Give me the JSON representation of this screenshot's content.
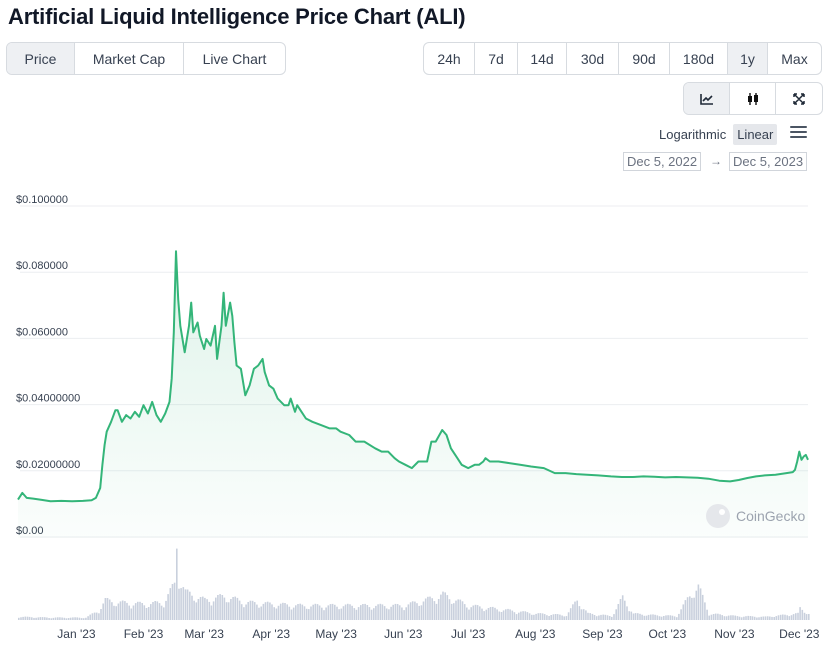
{
  "title": "Artificial Liquid Intelligence Price Chart (ALI)",
  "tabs": [
    "Price",
    "Market Cap",
    "Live Chart"
  ],
  "active_tab": "Price",
  "ranges": [
    "24h",
    "7d",
    "14d",
    "30d",
    "90d",
    "180d",
    "1y",
    "Max"
  ],
  "active_range": "1y",
  "chart_types": [
    "line-chart-icon",
    "candlestick-icon",
    "expand-icon"
  ],
  "active_chart_type": "line-chart-icon",
  "scale": {
    "options": [
      "Logarithmic",
      "Linear"
    ],
    "active": "Linear"
  },
  "menu_icon": "hamburger-menu-icon",
  "date_range": {
    "from": "Dec 5, 2022",
    "arrow": "→",
    "to": "Dec 5, 2023"
  },
  "watermark": "CoinGecko",
  "colors": {
    "line": "#34b579",
    "fill": "#e8f6ee",
    "volume": "#c9d0dd",
    "grid": "#eceef1"
  },
  "chart_data": {
    "type": "area",
    "x_start": "2022-12-05",
    "x_end": "2023-12-05",
    "ylim": [
      0,
      0.1
    ],
    "yticks": [
      "$0.00",
      "$0.02000000",
      "$0.04000000",
      "$0.060000",
      "$0.080000",
      "$0.100000"
    ],
    "ytick_values": [
      0,
      0.02,
      0.04,
      0.06,
      0.08,
      0.1
    ],
    "xticks": [
      "Jan '23",
      "Feb '23",
      "Mar '23",
      "Apr '23",
      "May '23",
      "Jun '23",
      "Jul '23",
      "Aug '23",
      "Sep '23",
      "Oct '23",
      "Nov '23",
      "Dec '23"
    ],
    "xtick_dates": [
      "2023-01-01",
      "2023-02-01",
      "2023-03-01",
      "2023-04-01",
      "2023-05-01",
      "2023-06-01",
      "2023-07-01",
      "2023-08-01",
      "2023-09-01",
      "2023-10-01",
      "2023-11-01",
      "2023-12-01"
    ],
    "grid": true,
    "series": [
      {
        "points": [
          [
            "2022-12-05",
            0.0095
          ],
          [
            "2022-12-07",
            0.0115
          ],
          [
            "2022-12-09",
            0.01
          ],
          [
            "2022-12-12",
            0.0098
          ],
          [
            "2022-12-16",
            0.0094
          ],
          [
            "2022-12-20",
            0.009
          ],
          [
            "2022-12-25",
            0.0091
          ],
          [
            "2022-12-30",
            0.009
          ],
          [
            "2023-01-04",
            0.0091
          ],
          [
            "2023-01-08",
            0.0093
          ],
          [
            "2023-01-10",
            0.01
          ],
          [
            "2023-01-12",
            0.013
          ],
          [
            "2023-01-13",
            0.02
          ],
          [
            "2023-01-14",
            0.026
          ],
          [
            "2023-01-15",
            0.03
          ],
          [
            "2023-01-17",
            0.033
          ],
          [
            "2023-01-19",
            0.0365
          ],
          [
            "2023-01-20",
            0.0365
          ],
          [
            "2023-01-22",
            0.033
          ],
          [
            "2023-01-24",
            0.035
          ],
          [
            "2023-01-26",
            0.034
          ],
          [
            "2023-01-28",
            0.036
          ],
          [
            "2023-01-30",
            0.0345
          ],
          [
            "2023-02-01",
            0.038
          ],
          [
            "2023-02-03",
            0.0355
          ],
          [
            "2023-02-05",
            0.039
          ],
          [
            "2023-02-07",
            0.035
          ],
          [
            "2023-02-09",
            0.033
          ],
          [
            "2023-02-11",
            0.0355
          ],
          [
            "2023-02-13",
            0.039
          ],
          [
            "2023-02-14",
            0.046
          ],
          [
            "2023-02-15",
            0.06
          ],
          [
            "2023-02-16",
            0.0845
          ],
          [
            "2023-02-17",
            0.07
          ],
          [
            "2023-02-18",
            0.062
          ],
          [
            "2023-02-20",
            0.054
          ],
          [
            "2023-02-22",
            0.062
          ],
          [
            "2023-02-23",
            0.069
          ],
          [
            "2023-02-24",
            0.06
          ],
          [
            "2023-02-26",
            0.063
          ],
          [
            "2023-02-27",
            0.059
          ],
          [
            "2023-03-01",
            0.055
          ],
          [
            "2023-03-02",
            0.058
          ],
          [
            "2023-03-04",
            0.056
          ],
          [
            "2023-03-06",
            0.062
          ],
          [
            "2023-03-07",
            0.052
          ],
          [
            "2023-03-09",
            0.062
          ],
          [
            "2023-03-10",
            0.072
          ],
          [
            "2023-03-11",
            0.062
          ],
          [
            "2023-03-13",
            0.069
          ],
          [
            "2023-03-14",
            0.065
          ],
          [
            "2023-03-15",
            0.057
          ],
          [
            "2023-03-16",
            0.05
          ],
          [
            "2023-03-18",
            0.049
          ],
          [
            "2023-03-20",
            0.041
          ],
          [
            "2023-03-22",
            0.044
          ],
          [
            "2023-03-24",
            0.049
          ],
          [
            "2023-03-26",
            0.05
          ],
          [
            "2023-03-28",
            0.052
          ],
          [
            "2023-03-29",
            0.048
          ],
          [
            "2023-03-31",
            0.044
          ],
          [
            "2023-04-02",
            0.043
          ],
          [
            "2023-04-04",
            0.04
          ],
          [
            "2023-04-07",
            0.038
          ],
          [
            "2023-04-09",
            0.038
          ],
          [
            "2023-04-10",
            0.04
          ],
          [
            "2023-04-12",
            0.036
          ],
          [
            "2023-04-13",
            0.038
          ],
          [
            "2023-04-15",
            0.036
          ],
          [
            "2023-04-17",
            0.034
          ],
          [
            "2023-04-20",
            0.033
          ],
          [
            "2023-04-24",
            0.032
          ],
          [
            "2023-04-28",
            0.031
          ],
          [
            "2023-05-01",
            0.031
          ],
          [
            "2023-05-03",
            0.03
          ],
          [
            "2023-05-07",
            0.029
          ],
          [
            "2023-05-10",
            0.027
          ],
          [
            "2023-05-14",
            0.027
          ],
          [
            "2023-05-19",
            0.025
          ],
          [
            "2023-05-22",
            0.024
          ],
          [
            "2023-05-25",
            0.024
          ],
          [
            "2023-05-28",
            0.022
          ],
          [
            "2023-05-30",
            0.021
          ],
          [
            "2023-06-02",
            0.02
          ],
          [
            "2023-06-05",
            0.019
          ],
          [
            "2023-06-08",
            0.021
          ],
          [
            "2023-06-12",
            0.021
          ],
          [
            "2023-06-14",
            0.027
          ],
          [
            "2023-06-16",
            0.027
          ],
          [
            "2023-06-19",
            0.0305
          ],
          [
            "2023-06-21",
            0.029
          ],
          [
            "2023-06-23",
            0.025
          ],
          [
            "2023-06-26",
            0.022
          ],
          [
            "2023-06-28",
            0.02
          ],
          [
            "2023-07-01",
            0.019
          ],
          [
            "2023-07-04",
            0.02
          ],
          [
            "2023-07-06",
            0.02
          ],
          [
            "2023-07-08",
            0.021
          ],
          [
            "2023-07-09",
            0.022
          ],
          [
            "2023-07-11",
            0.021
          ],
          [
            "2023-07-15",
            0.021
          ],
          [
            "2023-07-20",
            0.0205
          ],
          [
            "2023-07-25",
            0.02
          ],
          [
            "2023-07-30",
            0.0195
          ],
          [
            "2023-08-05",
            0.019
          ],
          [
            "2023-08-10",
            0.0175
          ],
          [
            "2023-08-15",
            0.0175
          ],
          [
            "2023-08-20",
            0.0172
          ],
          [
            "2023-08-25",
            0.017
          ],
          [
            "2023-08-30",
            0.0168
          ],
          [
            "2023-09-05",
            0.0165
          ],
          [
            "2023-09-10",
            0.0163
          ],
          [
            "2023-09-15",
            0.0163
          ],
          [
            "2023-09-20",
            0.0165
          ],
          [
            "2023-09-25",
            0.0164
          ],
          [
            "2023-09-30",
            0.0162
          ],
          [
            "2023-10-05",
            0.0163
          ],
          [
            "2023-10-10",
            0.0162
          ],
          [
            "2023-10-15",
            0.0161
          ],
          [
            "2023-10-20",
            0.0158
          ],
          [
            "2023-10-25",
            0.0152
          ],
          [
            "2023-10-30",
            0.015
          ],
          [
            "2023-11-03",
            0.0154
          ],
          [
            "2023-11-07",
            0.016
          ],
          [
            "2023-11-11",
            0.0165
          ],
          [
            "2023-11-15",
            0.0168
          ],
          [
            "2023-11-20",
            0.017
          ],
          [
            "2023-11-25",
            0.0175
          ],
          [
            "2023-11-28",
            0.0178
          ],
          [
            "2023-11-29",
            0.0185
          ],
          [
            "2023-11-30",
            0.021
          ],
          [
            "2023-12-01",
            0.024
          ],
          [
            "2023-12-02",
            0.0215
          ],
          [
            "2023-12-03",
            0.0225
          ],
          [
            "2023-12-04",
            0.023
          ],
          [
            "2023-12-05",
            0.0215
          ]
        ]
      }
    ],
    "volume_profile": [
      [
        "2022-12-05",
        0.04
      ],
      [
        "2022-12-20",
        0.03
      ],
      [
        "2023-01-05",
        0.03
      ],
      [
        "2023-01-11",
        0.12
      ],
      [
        "2023-01-14",
        0.25
      ],
      [
        "2023-01-20",
        0.22
      ],
      [
        "2023-02-01",
        0.2
      ],
      [
        "2023-02-10",
        0.22
      ],
      [
        "2023-02-15",
        0.45
      ],
      [
        "2023-02-16",
        1.0
      ],
      [
        "2023-02-17",
        0.55
      ],
      [
        "2023-02-20",
        0.35
      ],
      [
        "2023-03-01",
        0.25
      ],
      [
        "2023-03-10",
        0.3
      ],
      [
        "2023-03-20",
        0.22
      ],
      [
        "2023-04-01",
        0.2
      ],
      [
        "2023-04-15",
        0.18
      ],
      [
        "2023-05-01",
        0.18
      ],
      [
        "2023-05-20",
        0.18
      ],
      [
        "2023-06-01",
        0.18
      ],
      [
        "2023-06-15",
        0.28
      ],
      [
        "2023-06-19",
        0.32
      ],
      [
        "2023-07-01",
        0.18
      ],
      [
        "2023-07-20",
        0.12
      ],
      [
        "2023-08-01",
        0.08
      ],
      [
        "2023-08-15",
        0.06
      ],
      [
        "2023-08-20",
        0.25
      ],
      [
        "2023-08-25",
        0.08
      ],
      [
        "2023-09-05",
        0.05
      ],
      [
        "2023-09-10",
        0.28
      ],
      [
        "2023-09-15",
        0.08
      ],
      [
        "2023-09-25",
        0.06
      ],
      [
        "2023-10-05",
        0.05
      ],
      [
        "2023-10-12",
        0.35
      ],
      [
        "2023-10-15",
        0.42
      ],
      [
        "2023-10-20",
        0.08
      ],
      [
        "2023-11-01",
        0.05
      ],
      [
        "2023-11-15",
        0.04
      ],
      [
        "2023-11-30",
        0.08
      ],
      [
        "2023-12-01",
        0.15
      ],
      [
        "2023-12-05",
        0.08
      ]
    ]
  }
}
